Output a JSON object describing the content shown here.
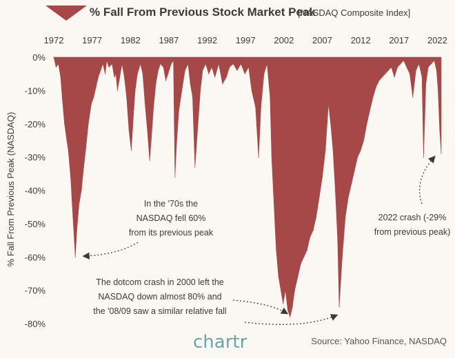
{
  "chart_data": {
    "type": "area",
    "title": "% Fall From Previous Stock Market Peak",
    "subtitle": "[NASDAQ Composite Index]",
    "ylabel": "% Fall From Previous Peak (NASDAQ)",
    "xlabel": "",
    "xlim": [
      1972,
      2022.5
    ],
    "ylim": [
      -80,
      0
    ],
    "x_ticks": [
      "1972",
      "1977",
      "1982",
      "1987",
      "1992",
      "1997",
      "2002",
      "2007",
      "2012",
      "2017",
      "2022"
    ],
    "y_ticks": [
      "0%",
      "-10%",
      "-20%",
      "-30%",
      "-40%",
      "-50%",
      "-60%",
      "-70%",
      "-80%"
    ],
    "grid": false,
    "series": [
      {
        "color": "#a64848",
        "x": [
          1972.0,
          1972.3,
          1972.6,
          1972.9,
          1973.1,
          1973.4,
          1973.7,
          1973.9,
          1974.2,
          1974.5,
          1974.8,
          1975.0,
          1975.3,
          1975.6,
          1975.9,
          1976.2,
          1976.5,
          1976.9,
          1977.2,
          1977.5,
          1977.8,
          1978.1,
          1978.4,
          1978.7,
          1978.9,
          1979.2,
          1979.6,
          1979.9,
          1980.1,
          1980.3,
          1980.6,
          1980.9,
          1981.2,
          1981.5,
          1981.8,
          1982.1,
          1982.4,
          1982.6,
          1982.9,
          1983.3,
          1983.6,
          1983.9,
          1984.2,
          1984.5,
          1984.7,
          1985.0,
          1985.3,
          1985.6,
          1985.9,
          1986.3,
          1986.6,
          1986.9,
          1987.3,
          1987.6,
          1987.8,
          1988.0,
          1988.3,
          1988.7,
          1989.1,
          1989.5,
          1989.8,
          1990.1,
          1990.4,
          1990.8,
          1991.1,
          1991.4,
          1991.8,
          1992.2,
          1992.6,
          1993.0,
          1993.5,
          1994.0,
          1994.5,
          1994.9,
          1995.4,
          1995.9,
          1996.4,
          1996.9,
          1997.4,
          1997.8,
          1998.3,
          1998.7,
          1999.0,
          1999.4,
          1999.8,
          2000.2,
          2000.4,
          2000.7,
          2001.0,
          2001.3,
          2001.6,
          2001.9,
          2002.2,
          2002.5,
          2002.8,
          2003.1,
          2003.4,
          2003.8,
          2004.2,
          2004.6,
          2005.0,
          2005.4,
          2005.8,
          2006.2,
          2006.6,
          2007.0,
          2007.4,
          2007.8,
          2008.1,
          2008.4,
          2008.7,
          2009.0,
          2009.2,
          2009.6,
          2010.0,
          2010.4,
          2010.8,
          2011.2,
          2011.6,
          2012.0,
          2012.4,
          2012.8,
          2013.2,
          2013.6,
          2014.0,
          2014.4,
          2014.8,
          2015.2,
          2015.6,
          2016.0,
          2016.4,
          2016.8,
          2017.2,
          2017.6,
          2018.0,
          2018.4,
          2018.8,
          2019.2,
          2019.6,
          2020.0,
          2020.2,
          2020.5,
          2020.8,
          2021.2,
          2021.6,
          2021.9,
          2022.1,
          2022.3,
          2022.5
        ],
        "values": [
          0,
          -3,
          -2,
          -6,
          -12,
          -20,
          -25,
          -28,
          -36,
          -48,
          -60,
          -52,
          -44,
          -40,
          -33,
          -27,
          -20,
          -14,
          -12,
          -9,
          -6,
          -4,
          -2,
          -5,
          -1,
          -3,
          -2,
          -6,
          -5,
          -10,
          -6,
          -2,
          -6,
          -12,
          -22,
          -28,
          -17,
          -10,
          -5,
          -2,
          -5,
          -14,
          -22,
          -31,
          -25,
          -15,
          -8,
          -4,
          -2,
          -3,
          -7,
          -5,
          -2,
          -1,
          -36,
          -26,
          -16,
          -10,
          -4,
          -2,
          -8,
          -12,
          -33,
          -20,
          -10,
          -4,
          -2,
          -5,
          -3,
          -6,
          -2,
          -8,
          -6,
          -3,
          -2,
          -4,
          -2,
          -5,
          -3,
          -10,
          -15,
          -30,
          -15,
          -5,
          -2,
          -12,
          -30,
          -44,
          -58,
          -66,
          -70,
          -74,
          -70,
          -76,
          -78,
          -75,
          -70,
          -66,
          -62,
          -60,
          -58,
          -54,
          -52,
          -48,
          -42,
          -36,
          -28,
          -14,
          -20,
          -28,
          -40,
          -55,
          -75,
          -60,
          -48,
          -42,
          -38,
          -34,
          -30,
          -28,
          -25,
          -20,
          -16,
          -12,
          -9,
          -7,
          -6,
          -5,
          -4,
          -3,
          -6,
          -3,
          -2,
          -1,
          -3,
          -5,
          -12,
          -4,
          -2,
          -6,
          -30,
          -8,
          -3,
          -2,
          -1,
          -4,
          -10,
          -22,
          -29
        ]
      }
    ],
    "annotations": [
      {
        "lines": [
          "In the '70s the",
          "NASDAQ fell 60%",
          "from its previous peak"
        ],
        "x": 1974.8,
        "y": -60
      },
      {
        "lines": [
          "The dotcom crash in 2000 left the",
          "NASDAQ down almost 80% and",
          "the '08/09 saw a similar relative fall"
        ],
        "x": 2002.8,
        "y": -78
      },
      {
        "lines": [
          "2022 crash (-29%",
          "from previous peak)"
        ],
        "x": 2022.4,
        "y": -29
      }
    ]
  },
  "source": "Source: Yahoo Finance, NASDAQ",
  "brand": "chartr"
}
